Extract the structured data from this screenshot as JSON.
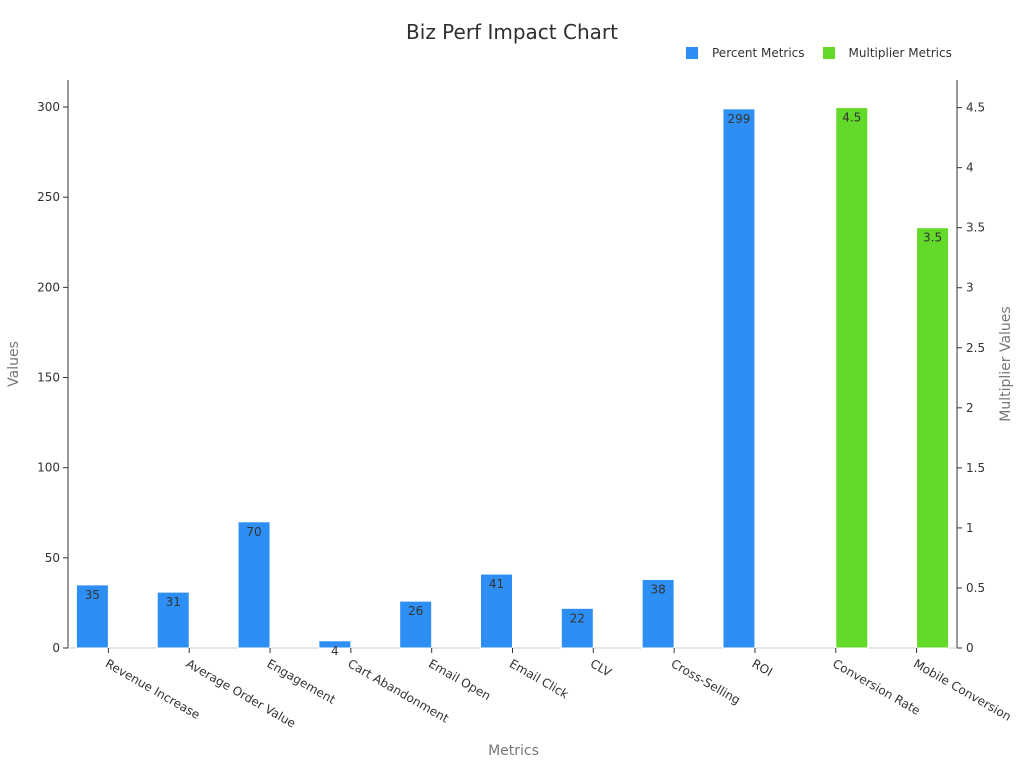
{
  "chart_data": {
    "type": "bar",
    "title": "Biz Perf Impact Chart",
    "xlabel": "Metrics",
    "ylabel": "Values",
    "y2label": "Multiplier Values",
    "categories": [
      "Revenue Increase",
      "Average Order Value",
      "Engagement",
      "Cart Abandonment",
      "Email Open",
      "Email Click",
      "CLV",
      "Cross-Selling",
      "ROI",
      "Conversion Rate",
      "Mobile Conversion"
    ],
    "ylim": [
      0,
      315
    ],
    "y2lim": [
      0,
      4.73
    ],
    "yticks": [
      0,
      50,
      100,
      150,
      200,
      250,
      300
    ],
    "y2ticks": [
      0,
      0.5,
      1,
      1.5,
      2,
      2.5,
      3,
      3.5,
      4,
      4.5
    ],
    "legend_position": "top-right",
    "grid": false,
    "series": [
      {
        "name": "Percent Metrics",
        "axis": "left",
        "color": "#2d8ff3",
        "values": [
          35,
          31,
          70,
          4,
          26,
          41,
          22,
          38,
          299,
          null,
          null
        ],
        "labels": [
          "35",
          "31",
          "70",
          "4",
          "26",
          "41",
          "22",
          "38",
          "299",
          "",
          ""
        ]
      },
      {
        "name": "Multiplier Metrics",
        "axis": "right",
        "color": "#63d92a",
        "values": [
          null,
          null,
          null,
          null,
          null,
          null,
          null,
          null,
          null,
          4.5,
          3.5
        ],
        "labels": [
          "",
          "",
          "",
          "",
          "",
          "",
          "",
          "",
          "",
          "4.5",
          "3.5"
        ]
      }
    ]
  }
}
